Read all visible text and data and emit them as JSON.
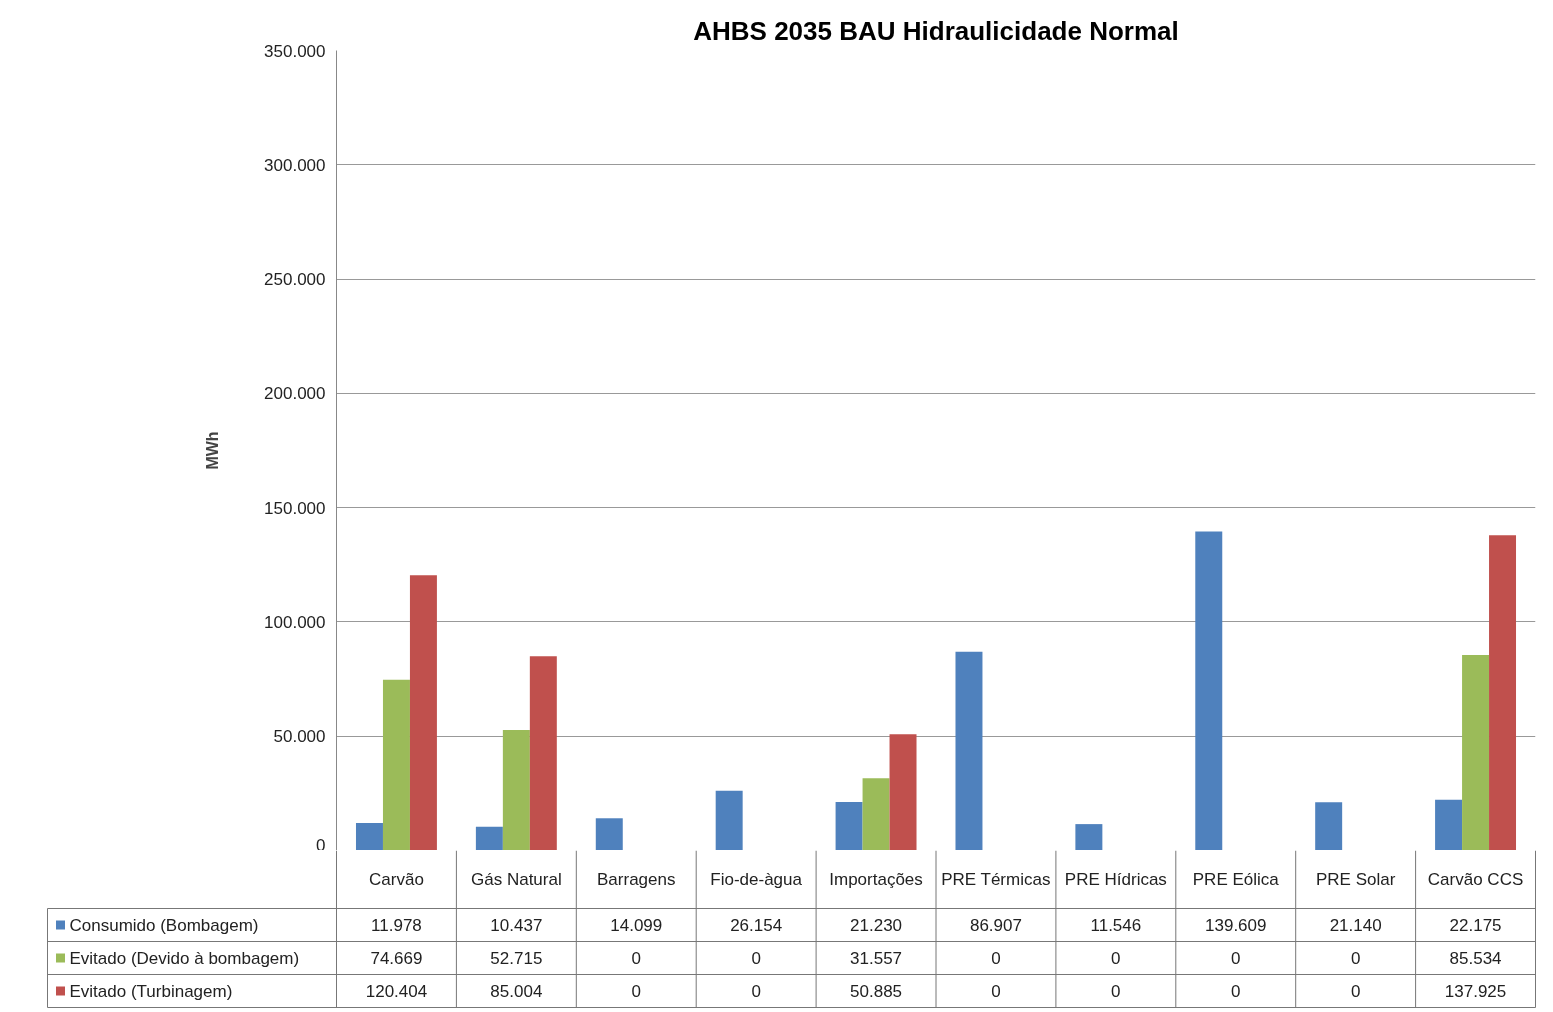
{
  "chart_data": {
    "type": "bar",
    "title": "AHBS 2035 BAU Hidraulicidade Normal",
    "ylabel": "MWh",
    "categories": [
      "Carvão",
      "Gás Natural",
      "Barragens",
      "Fio-de-àgua",
      "Importações",
      "PRE Térmicas",
      "PRE Hídricas",
      "PRE Eólica",
      "PRE Solar",
      "Carvão CCS"
    ],
    "series": [
      {
        "name": "Consumido (Bombagem)",
        "color": "#4f81bd",
        "values": [
          11978,
          10437,
          14099,
          26154,
          21230,
          86907,
          11546,
          139609,
          21140,
          22175
        ],
        "value_labels": [
          "11.978",
          "10.437",
          "14.099",
          "26.154",
          "21.230",
          "86.907",
          "11.546",
          "139.609",
          "21.140",
          "22.175"
        ]
      },
      {
        "name": "Evitado (Devido à bombagem)",
        "color": "#9bbb59",
        "values": [
          74669,
          52715,
          0,
          0,
          31557,
          0,
          0,
          0,
          0,
          85534
        ],
        "value_labels": [
          "74.669",
          "52.715",
          "0",
          "0",
          "31.557",
          "0",
          "0",
          "0",
          "0",
          "85.534"
        ]
      },
      {
        "name": "Evitado (Turbinagem)",
        "color": "#c0504d",
        "values": [
          120404,
          85004,
          0,
          0,
          50885,
          0,
          0,
          0,
          0,
          137925
        ],
        "value_labels": [
          "120.404",
          "85.004",
          "0",
          "0",
          "50.885",
          "0",
          "0",
          "0",
          "0",
          "137.925"
        ]
      }
    ],
    "ylim": [
      0,
      350000
    ],
    "yticks": [
      {
        "value": 0,
        "label": "0"
      },
      {
        "value": 50000,
        "label": "50.000"
      },
      {
        "value": 100000,
        "label": "100.000"
      },
      {
        "value": 150000,
        "label": "150.000"
      },
      {
        "value": 200000,
        "label": "200.000"
      },
      {
        "value": 250000,
        "label": "250.000"
      },
      {
        "value": 300000,
        "label": "300.000"
      },
      {
        "value": 350000,
        "label": "350.000"
      }
    ],
    "grid": "y",
    "legend": "bottom"
  }
}
